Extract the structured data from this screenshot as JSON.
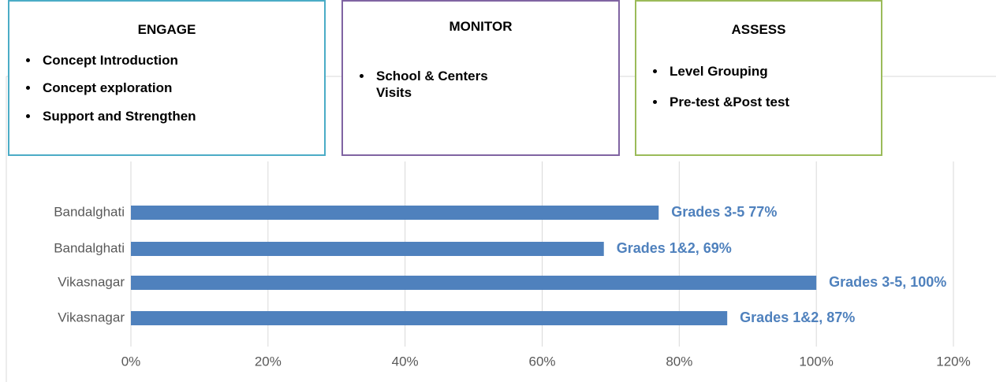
{
  "chart_data": {
    "type": "barh",
    "categories": [
      "Bandalghati",
      "Bandalghati",
      "Vikasnagar",
      "Vikasnagar"
    ],
    "values": [
      77,
      69,
      100,
      87
    ],
    "value_labels": [
      "Grades 3-5 77%",
      "Grades 1&2, 69%",
      "Grades 3-5, 100%",
      "Grades 1&2, 87%"
    ],
    "color": "#4f81bd",
    "xlim": [
      0,
      120
    ],
    "xticks": [
      {
        "value": 0,
        "label": "0%"
      },
      {
        "value": 20,
        "label": "20%"
      },
      {
        "value": 40,
        "label": "40%"
      },
      {
        "value": 60,
        "label": "60%"
      },
      {
        "value": 80,
        "label": "80%"
      },
      {
        "value": 100,
        "label": "100%"
      },
      {
        "value": 120,
        "label": "120%"
      }
    ],
    "grid": true,
    "annotations": [
      {
        "title": "ENGAGE",
        "color": "#4bacc6",
        "items": [
          "Concept Introduction",
          "Concept exploration",
          "Support and Strengthen"
        ]
      },
      {
        "title": "MONITOR",
        "color": "#8064a2",
        "items": [
          "School & Centers Visits"
        ]
      },
      {
        "title": "ASSESS",
        "color": "#9bbb59",
        "items": [
          "Level Grouping",
          "Pre-test &Post test"
        ]
      }
    ]
  }
}
